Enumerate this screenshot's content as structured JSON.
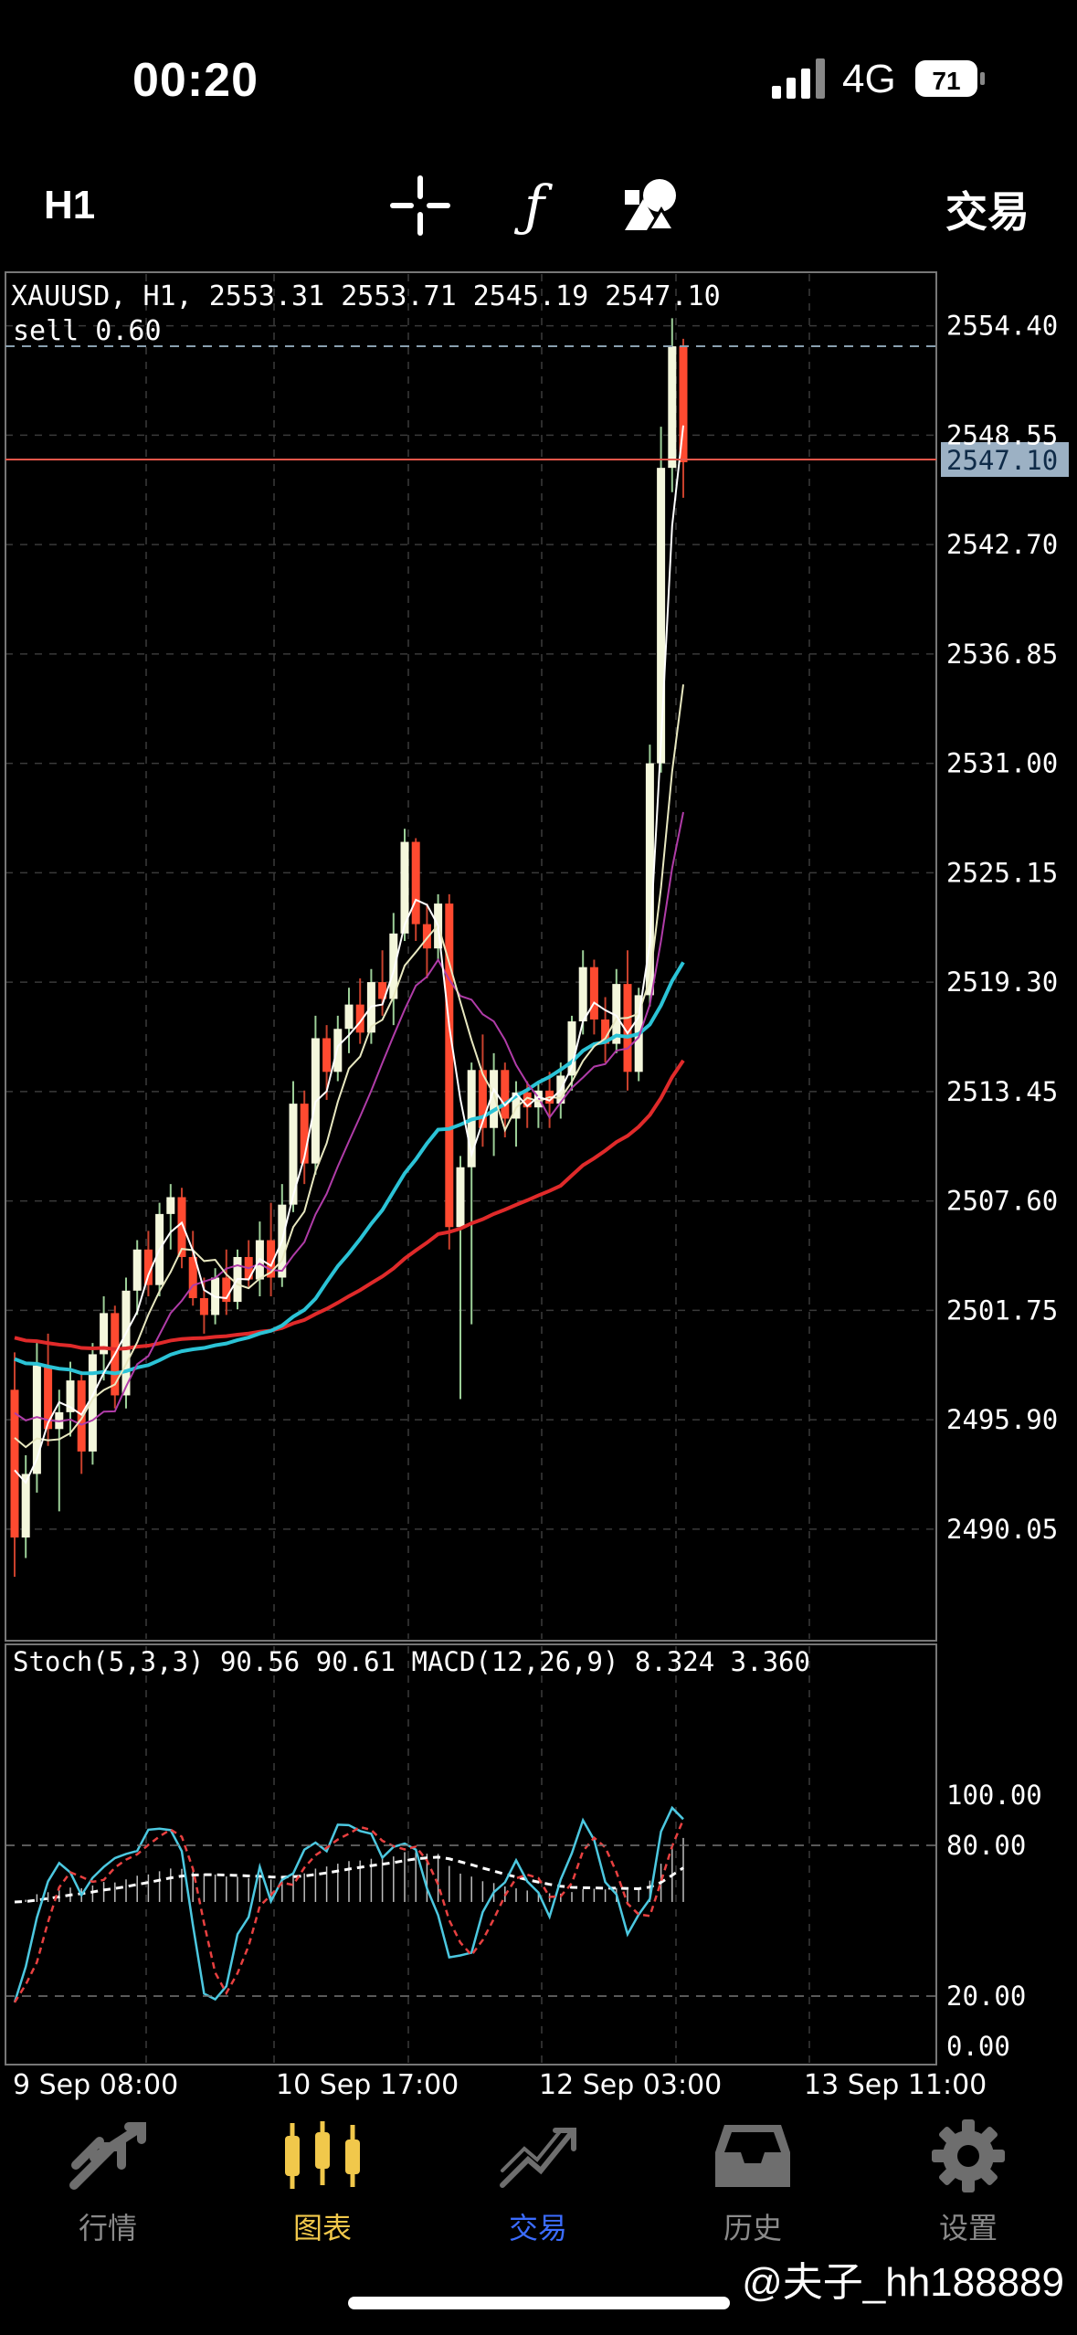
{
  "status": {
    "time": "00:20",
    "network": "4G",
    "battery": "71"
  },
  "toolbar": {
    "timeframe": "H1",
    "icons": [
      "crosshair-icon",
      "function-icon",
      "objects-icon"
    ],
    "trade_label": "交易"
  },
  "main_chart": {
    "info": "XAUUSD, H1, 2553.31 2553.71 2545.19 2547.10",
    "order": "sell 0.60",
    "price_labels": [
      "2554.40",
      "2548.55",
      "2542.70",
      "2536.85",
      "2531.00",
      "2525.15",
      "2519.30",
      "2513.45",
      "2507.60",
      "2501.75",
      "2495.90",
      "2490.05"
    ],
    "current_price": "2547.10"
  },
  "sub_chart": {
    "info": "Stoch(5,3,3) 90.56 90.61 MACD(12,26,9) 8.324 3.360",
    "levels": [
      "100.00",
      "80.00",
      "20.00",
      "0.00"
    ]
  },
  "time_axis": [
    "9 Sep 08:00",
    "10 Sep 17:00",
    "12 Sep 03:00",
    "13 Sep 11:00"
  ],
  "nav": [
    {
      "label": "行情",
      "icon": "quotes-icon",
      "active": false
    },
    {
      "label": "图表",
      "icon": "chart-icon",
      "active": true
    },
    {
      "label": "交易",
      "icon": "trade-icon",
      "active": false
    },
    {
      "label": "历史",
      "icon": "history-icon",
      "active": false
    },
    {
      "label": "设置",
      "icon": "settings-icon",
      "active": false
    }
  ],
  "watermark": "@夫子_hh188889",
  "colors": {
    "up": "#f4f7dc",
    "down": "#ff4a30",
    "ma_cyan": "#2bc3d6",
    "ma_red": "#e02a2a",
    "ma_magenta": "#b03ca8",
    "nav_active": "#f1c84b",
    "nav_trade": "#3b6cff",
    "grid": "#3a3a3a"
  },
  "chart_data": {
    "type": "candlestick",
    "symbol": "XAUUSD",
    "timeframe": "H1",
    "ylim": [
      2486.0,
      2556.5
    ],
    "candles": [
      [
        2497.5,
        2499.5,
        2487.5,
        2489.6
      ],
      [
        2489.6,
        2494.0,
        2488.5,
        2493.0
      ],
      [
        2493.0,
        2500.0,
        2492.0,
        2498.8
      ],
      [
        2498.8,
        2500.5,
        2494.5,
        2495.4
      ],
      [
        2495.4,
        2497.5,
        2491.0,
        2496.3
      ],
      [
        2496.3,
        2499.0,
        2495.0,
        2498.0
      ],
      [
        2498.0,
        2498.5,
        2493.0,
        2494.2
      ],
      [
        2494.2,
        2500.0,
        2493.5,
        2499.4
      ],
      [
        2499.4,
        2502.5,
        2498.0,
        2501.6
      ],
      [
        2501.6,
        2502.0,
        2496.5,
        2497.2
      ],
      [
        2497.2,
        2503.5,
        2496.5,
        2502.8
      ],
      [
        2502.8,
        2505.5,
        2501.5,
        2505.0
      ],
      [
        2505.0,
        2506.0,
        2502.5,
        2503.1
      ],
      [
        2503.1,
        2507.5,
        2502.5,
        2506.9
      ],
      [
        2506.9,
        2508.5,
        2505.0,
        2507.8
      ],
      [
        2507.8,
        2508.3,
        2504.0,
        2504.6
      ],
      [
        2504.6,
        2506.0,
        2502.0,
        2502.4
      ],
      [
        2502.4,
        2503.5,
        2500.5,
        2501.5
      ],
      [
        2501.5,
        2504.0,
        2501.0,
        2503.5
      ],
      [
        2503.5,
        2505.0,
        2501.5,
        2502.2
      ],
      [
        2502.2,
        2505.0,
        2501.8,
        2504.6
      ],
      [
        2504.6,
        2505.5,
        2503.0,
        2503.4
      ],
      [
        2503.4,
        2506.5,
        2502.5,
        2505.5
      ],
      [
        2505.5,
        2507.5,
        2502.5,
        2503.5
      ],
      [
        2503.5,
        2508.5,
        2503.0,
        2507.4
      ],
      [
        2507.4,
        2514.0,
        2507.0,
        2512.8
      ],
      [
        2512.8,
        2513.5,
        2508.5,
        2509.6
      ],
      [
        2509.6,
        2517.5,
        2509.0,
        2516.3
      ],
      [
        2516.3,
        2517.0,
        2513.0,
        2514.5
      ],
      [
        2514.5,
        2517.5,
        2514.0,
        2516.8
      ],
      [
        2516.8,
        2519.0,
        2515.5,
        2518.1
      ],
      [
        2518.1,
        2519.5,
        2516.0,
        2516.6
      ],
      [
        2516.6,
        2520.0,
        2516.0,
        2519.3
      ],
      [
        2519.3,
        2521.0,
        2517.5,
        2518.4
      ],
      [
        2518.4,
        2523.0,
        2517.0,
        2521.9
      ],
      [
        2521.9,
        2527.5,
        2521.5,
        2526.8
      ],
      [
        2526.8,
        2527.0,
        2521.5,
        2522.4
      ],
      [
        2522.4,
        2523.5,
        2519.5,
        2521.1
      ],
      [
        2521.1,
        2524.0,
        2520.5,
        2523.5
      ],
      [
        2523.5,
        2524.0,
        2505.0,
        2506.2
      ],
      [
        2506.2,
        2510.0,
        2497.0,
        2509.4
      ],
      [
        2509.4,
        2515.0,
        2501.0,
        2514.6
      ],
      [
        2514.6,
        2516.5,
        2510.5,
        2511.5
      ],
      [
        2511.5,
        2515.5,
        2510.0,
        2514.6
      ],
      [
        2514.6,
        2515.0,
        2511.0,
        2512.0
      ],
      [
        2512.0,
        2514.0,
        2510.5,
        2513.4
      ],
      [
        2513.4,
        2514.0,
        2511.5,
        2512.6
      ],
      [
        2512.6,
        2514.0,
        2511.5,
        2513.5
      ],
      [
        2513.5,
        2514.5,
        2511.5,
        2512.8
      ],
      [
        2512.8,
        2515.0,
        2512.0,
        2514.3
      ],
      [
        2514.3,
        2517.5,
        2513.5,
        2517.2
      ],
      [
        2517.2,
        2521.0,
        2516.5,
        2520.1
      ],
      [
        2520.1,
        2520.5,
        2516.5,
        2517.3
      ],
      [
        2517.3,
        2518.5,
        2515.0,
        2516.0
      ],
      [
        2516.0,
        2520.0,
        2515.5,
        2519.2
      ],
      [
        2519.2,
        2521.0,
        2513.5,
        2514.5
      ],
      [
        2514.5,
        2519.0,
        2514.0,
        2518.6
      ],
      [
        2518.6,
        2532.0,
        2518.0,
        2531.0
      ],
      [
        2531.0,
        2549.0,
        2530.5,
        2546.8
      ],
      [
        2546.8,
        2554.8,
        2545.5,
        2553.3
      ],
      [
        2553.3,
        2553.7,
        2545.2,
        2547.1
      ]
    ]
  }
}
